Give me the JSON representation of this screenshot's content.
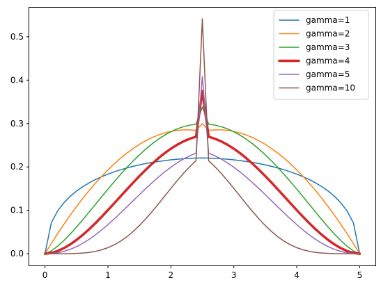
{
  "chart_data": {
    "type": "line",
    "title": "",
    "xlabel": "",
    "ylabel": "",
    "xlim": [
      -0.25,
      5.25
    ],
    "ylim": [
      -0.027,
      0.567
    ],
    "xticks": [
      0,
      1,
      2,
      3,
      4,
      5
    ],
    "yticks": [
      0.0,
      0.1,
      0.2,
      0.3,
      0.4,
      0.5
    ],
    "xtick_labels": [
      "0",
      "1",
      "2",
      "3",
      "4",
      "5"
    ],
    "ytick_labels": [
      "0.0",
      "0.1",
      "0.2",
      "0.3",
      "0.4",
      "0.5"
    ],
    "grid": false,
    "legend_position": "upper right",
    "x": [
      0,
      0.1,
      0.2,
      0.3,
      0.4,
      0.5,
      0.6,
      0.7,
      0.8,
      0.9,
      1.0,
      1.1,
      1.2,
      1.3,
      1.4,
      1.5,
      1.6,
      1.7,
      1.8,
      1.9,
      2.0,
      2.1,
      2.2,
      2.3,
      2.4,
      2.5,
      2.6,
      2.7,
      2.8,
      2.9,
      3.0,
      3.1,
      3.2,
      3.3,
      3.4,
      3.5,
      3.6,
      3.7,
      3.8,
      3.9,
      4.0,
      4.1,
      4.2,
      4.3,
      4.4,
      4.5,
      4.6,
      4.7,
      4.8,
      4.9,
      5.0
    ],
    "series": [
      {
        "name": "gamma=1",
        "color": "#1f77b4",
        "width": 1.5,
        "values": [
          0.0,
          0.0711,
          0.0984,
          0.1174,
          0.1322,
          0.1443,
          0.1545,
          0.1632,
          0.1708,
          0.1775,
          0.1834,
          0.1887,
          0.1934,
          0.1976,
          0.2013,
          0.2047,
          0.2077,
          0.2103,
          0.2126,
          0.2146,
          0.2163,
          0.2177,
          0.2189,
          0.2198,
          0.2204,
          0.2207,
          0.2204,
          0.2198,
          0.2189,
          0.2177,
          0.2163,
          0.2146,
          0.2126,
          0.2103,
          0.2077,
          0.2047,
          0.2013,
          0.1976,
          0.1934,
          0.1887,
          0.1834,
          0.1775,
          0.1708,
          0.1632,
          0.1545,
          0.1443,
          0.1322,
          0.1174,
          0.0984,
          0.0711,
          0.0
        ]
      },
      {
        "name": "gamma=2",
        "color": "#ff7f0e",
        "width": 1.5,
        "values": [
          0.0,
          0.0235,
          0.0461,
          0.0678,
          0.0886,
          0.1085,
          0.1274,
          0.1453,
          0.1623,
          0.1783,
          0.1932,
          0.2071,
          0.22,
          0.2318,
          0.2424,
          0.252,
          0.2603,
          0.2675,
          0.2735,
          0.2783,
          0.2819,
          0.2843,
          0.2855,
          0.2855,
          0.2843,
          0.2999,
          0.2843,
          0.2855,
          0.2855,
          0.2843,
          0.2819,
          0.2783,
          0.2735,
          0.2675,
          0.2603,
          0.252,
          0.2424,
          0.2318,
          0.22,
          0.2071,
          0.1932,
          0.1783,
          0.1623,
          0.1453,
          0.1274,
          0.1085,
          0.0886,
          0.0678,
          0.0461,
          0.0235,
          0.0
        ]
      },
      {
        "name": "gamma=3",
        "color": "#2ca02c",
        "width": 1.5,
        "values": [
          0.0,
          0.0065,
          0.0172,
          0.0303,
          0.0452,
          0.0613,
          0.0783,
          0.0958,
          0.1135,
          0.1313,
          0.1488,
          0.166,
          0.1826,
          0.1986,
          0.2137,
          0.2279,
          0.241,
          0.253,
          0.2637,
          0.2731,
          0.2811,
          0.2877,
          0.2927,
          0.2963,
          0.2984,
          0.3383,
          0.2984,
          0.2963,
          0.2927,
          0.2877,
          0.2811,
          0.2731,
          0.2637,
          0.253,
          0.241,
          0.2279,
          0.2137,
          0.1986,
          0.1826,
          0.166,
          0.1488,
          0.1313,
          0.1135,
          0.0958,
          0.0783,
          0.0613,
          0.0452,
          0.0303,
          0.0172,
          0.0065,
          0.0
        ]
      },
      {
        "name": "gamma=4",
        "color": "#d62728",
        "width": 3.5,
        "values": [
          0.0,
          0.0018,
          0.0062,
          0.0129,
          0.0214,
          0.0317,
          0.0434,
          0.0563,
          0.0703,
          0.0851,
          0.1005,
          0.1163,
          0.1322,
          0.1481,
          0.1637,
          0.1789,
          0.1934,
          0.2071,
          0.2199,
          0.2316,
          0.242,
          0.2511,
          0.2588,
          0.265,
          0.2696,
          0.375,
          0.2696,
          0.265,
          0.2588,
          0.2511,
          0.242,
          0.2316,
          0.2199,
          0.2071,
          0.1934,
          0.1789,
          0.1637,
          0.1481,
          0.1322,
          0.1163,
          0.1005,
          0.0851,
          0.0703,
          0.0563,
          0.0434,
          0.0317,
          0.0214,
          0.0129,
          0.0062,
          0.0018,
          0.0
        ]
      },
      {
        "name": "gamma=5",
        "color": "#9467bd",
        "width": 1.5,
        "values": [
          0.0,
          0.0005,
          0.0022,
          0.0054,
          0.0101,
          0.0163,
          0.024,
          0.0331,
          0.0434,
          0.0548,
          0.0671,
          0.0802,
          0.0938,
          0.1078,
          0.122,
          0.1361,
          0.15,
          0.1634,
          0.1763,
          0.1883,
          0.1994,
          0.2094,
          0.2182,
          0.2256,
          0.2316,
          0.4082,
          0.2316,
          0.2256,
          0.2182,
          0.2094,
          0.1994,
          0.1883,
          0.1763,
          0.1634,
          0.15,
          0.1361,
          0.122,
          0.1078,
          0.0938,
          0.0802,
          0.0671,
          0.0548,
          0.0434,
          0.0331,
          0.024,
          0.0163,
          0.0101,
          0.0054,
          0.0022,
          0.0005,
          0.0
        ]
      },
      {
        "name": "gamma=10",
        "color": "#8c564b",
        "width": 1.5,
        "values": [
          0.0,
          0.0,
          0.0,
          0.0001,
          0.0003,
          0.0008,
          0.0016,
          0.0031,
          0.0055,
          0.009,
          0.014,
          0.0205,
          0.0288,
          0.039,
          0.0511,
          0.0649,
          0.0803,
          0.0969,
          0.1144,
          0.1325,
          0.1506,
          0.1683,
          0.1851,
          0.2006,
          0.2142,
          0.5411,
          0.2142,
          0.2006,
          0.1851,
          0.1683,
          0.1506,
          0.1325,
          0.1144,
          0.0969,
          0.0803,
          0.0649,
          0.0511,
          0.039,
          0.0288,
          0.0205,
          0.014,
          0.009,
          0.0055,
          0.0031,
          0.0016,
          0.0008,
          0.0003,
          0.0001,
          0.0,
          0.0,
          0.0
        ]
      }
    ]
  }
}
